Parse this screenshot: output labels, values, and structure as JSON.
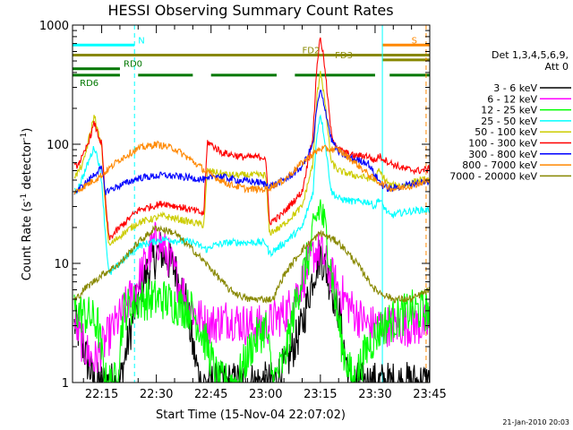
{
  "chart_data": {
    "type": "line",
    "title": "HESSI Observing Summary Count Rates",
    "xlabel": "Start Time (15-Nov-04 22:07:02)",
    "ylabel_main": "Count Rate (s",
    "ylabel_sup1": "-1",
    "ylabel_mid": " detector",
    "ylabel_sup2": "-1",
    "ylabel_end": ")",
    "yscale": "log",
    "xlim": [
      7,
      105
    ],
    "ylim": [
      1,
      1000
    ],
    "x_ticks": [
      {
        "value": 15,
        "label": "22:15"
      },
      {
        "value": 30,
        "label": "22:30"
      },
      {
        "value": 45,
        "label": "22:45"
      },
      {
        "value": 60,
        "label": "23:00"
      },
      {
        "value": 75,
        "label": "23:15"
      },
      {
        "value": 90,
        "label": "23:30"
      },
      {
        "value": 105,
        "label": "23:45"
      }
    ],
    "y_ticks": [
      {
        "value": 1,
        "label": "1"
      },
      {
        "value": 10,
        "label": "10"
      },
      {
        "value": 100,
        "label": "100"
      },
      {
        "value": 1000,
        "label": "1000"
      }
    ],
    "legend": {
      "placement": "right",
      "header_line1": "Det 1,3,4,5,6,9,",
      "header_line2": "Att 0",
      "entries": [
        {
          "label": "3 - 6 keV",
          "color": "#000000"
        },
        {
          "label": "6 - 12 keV",
          "color": "#ff00ff"
        },
        {
          "label": "12 - 25 keV",
          "color": "#00ff00"
        },
        {
          "label": "25 - 50 keV",
          "color": "#00ffff"
        },
        {
          "label": "50 - 100 keV",
          "color": "#cccc00"
        },
        {
          "label": "100 - 300 keV",
          "color": "#ff0000"
        },
        {
          "label": "300 - 800 keV",
          "color": "#0000ff"
        },
        {
          "label": "800 - 7000 keV",
          "color": "#ff8800"
        },
        {
          "label": "7000 - 20000 keV",
          "color": "#888800"
        }
      ]
    },
    "series": [
      {
        "band": "3 - 6 keV",
        "color": "#000000",
        "points": [
          [
            8,
            3
          ],
          [
            10,
            2
          ],
          [
            11,
            1.5
          ],
          [
            13,
            1
          ],
          [
            20,
            1
          ],
          [
            24,
            4
          ],
          [
            27,
            8
          ],
          [
            31,
            13
          ],
          [
            35,
            9
          ],
          [
            38,
            5
          ],
          [
            40,
            2
          ],
          [
            42,
            1
          ],
          [
            52,
            1
          ],
          [
            57,
            1
          ],
          [
            62,
            1
          ],
          [
            66,
            1.5
          ],
          [
            70,
            3
          ],
          [
            73,
            8
          ],
          [
            75,
            12
          ],
          [
            77,
            8
          ],
          [
            80,
            4
          ],
          [
            83,
            1
          ],
          [
            87,
            1
          ],
          [
            92,
            1
          ],
          [
            105,
            1
          ]
        ]
      },
      {
        "band": "6 - 12 keV",
        "color": "#ff00ff",
        "points": [
          [
            8,
            3
          ],
          [
            10,
            2
          ],
          [
            13,
            1.5
          ],
          [
            17,
            2.5
          ],
          [
            20,
            3.5
          ],
          [
            24,
            6
          ],
          [
            27,
            10
          ],
          [
            30,
            16
          ],
          [
            33,
            12
          ],
          [
            36,
            7
          ],
          [
            40,
            4
          ],
          [
            44,
            3
          ],
          [
            50,
            3.5
          ],
          [
            55,
            3
          ],
          [
            60,
            3
          ],
          [
            66,
            4
          ],
          [
            70,
            7
          ],
          [
            73,
            12
          ],
          [
            75,
            13
          ],
          [
            77,
            9
          ],
          [
            80,
            6
          ],
          [
            84,
            4
          ],
          [
            88,
            3
          ],
          [
            95,
            3
          ],
          [
            100,
            3
          ],
          [
            105,
            3
          ]
        ]
      },
      {
        "band": "12 - 25 keV",
        "color": "#00ff00",
        "points": [
          [
            8,
            4
          ],
          [
            12,
            3.5
          ],
          [
            14,
            3
          ],
          [
            16,
            1
          ],
          [
            19,
            1
          ],
          [
            21,
            4
          ],
          [
            26,
            5
          ],
          [
            32,
            5
          ],
          [
            40,
            4
          ],
          [
            44,
            2
          ],
          [
            47,
            1
          ],
          [
            52,
            1
          ],
          [
            56,
            2
          ],
          [
            60,
            3
          ],
          [
            62,
            1
          ],
          [
            65,
            1.5
          ],
          [
            69,
            6
          ],
          [
            72,
            12
          ],
          [
            74,
            25
          ],
          [
            75,
            30
          ],
          [
            77,
            15
          ],
          [
            79,
            5
          ],
          [
            81,
            2
          ],
          [
            84,
            1
          ],
          [
            88,
            2
          ],
          [
            92,
            3
          ],
          [
            100,
            4
          ],
          [
            105,
            4
          ]
        ]
      },
      {
        "band": "25 - 50 keV",
        "color": "#00ffff",
        "points": [
          [
            8,
            40
          ],
          [
            10,
            55
          ],
          [
            12,
            80
          ],
          [
            13,
            95
          ],
          [
            14,
            75
          ],
          [
            15,
            50
          ],
          [
            16,
            18
          ],
          [
            17,
            8
          ],
          [
            20,
            10
          ],
          [
            25,
            14
          ],
          [
            32,
            16
          ],
          [
            40,
            15
          ],
          [
            44,
            13
          ],
          [
            45,
            14
          ],
          [
            50,
            15
          ],
          [
            55,
            15
          ],
          [
            60,
            15
          ],
          [
            61,
            12
          ],
          [
            64,
            14
          ],
          [
            70,
            20
          ],
          [
            73,
            40
          ],
          [
            74,
            120
          ],
          [
            75,
            180
          ],
          [
            76,
            120
          ],
          [
            78,
            40
          ],
          [
            80,
            35
          ],
          [
            84,
            33
          ],
          [
            88,
            33
          ],
          [
            90,
            30
          ],
          [
            91,
            35
          ],
          [
            94,
            25
          ],
          [
            98,
            27
          ],
          [
            102,
            28
          ],
          [
            105,
            28
          ]
        ]
      },
      {
        "band": "50 - 100 keV",
        "color": "#cccc00",
        "points": [
          [
            8,
            55
          ],
          [
            10,
            70
          ],
          [
            12,
            130
          ],
          [
            13,
            175
          ],
          [
            14,
            125
          ],
          [
            15,
            95
          ],
          [
            16,
            30
          ],
          [
            17,
            14
          ],
          [
            20,
            17
          ],
          [
            25,
            22
          ],
          [
            32,
            25
          ],
          [
            40,
            22
          ],
          [
            43,
            21
          ],
          [
            44,
            60
          ],
          [
            50,
            55
          ],
          [
            55,
            55
          ],
          [
            60,
            55
          ],
          [
            61,
            18
          ],
          [
            64,
            20
          ],
          [
            70,
            30
          ],
          [
            73,
            70
          ],
          [
            74,
            240
          ],
          [
            75,
            420
          ],
          [
            76,
            260
          ],
          [
            78,
            70
          ],
          [
            80,
            60
          ],
          [
            84,
            55
          ],
          [
            88,
            52
          ],
          [
            90,
            50
          ],
          [
            91,
            60
          ],
          [
            94,
            45
          ],
          [
            98,
            45
          ],
          [
            102,
            50
          ],
          [
            105,
            50
          ]
        ]
      },
      {
        "band": "100 - 300 keV",
        "color": "#ff0000",
        "points": [
          [
            8,
            65
          ],
          [
            10,
            80
          ],
          [
            12,
            120
          ],
          [
            13,
            150
          ],
          [
            14,
            120
          ],
          [
            15,
            100
          ],
          [
            16,
            35
          ],
          [
            17,
            16
          ],
          [
            20,
            20
          ],
          [
            25,
            28
          ],
          [
            32,
            32
          ],
          [
            40,
            28
          ],
          [
            43,
            26
          ],
          [
            44,
            105
          ],
          [
            48,
            85
          ],
          [
            54,
            78
          ],
          [
            60,
            78
          ],
          [
            61,
            22
          ],
          [
            64,
            25
          ],
          [
            70,
            40
          ],
          [
            73,
            120
          ],
          [
            74,
            450
          ],
          [
            75,
            800
          ],
          [
            76,
            500
          ],
          [
            78,
            120
          ],
          [
            80,
            90
          ],
          [
            84,
            80
          ],
          [
            88,
            80
          ],
          [
            90,
            72
          ],
          [
            91,
            80
          ],
          [
            94,
            70
          ],
          [
            98,
            62
          ],
          [
            102,
            60
          ],
          [
            105,
            62
          ]
        ]
      },
      {
        "band": "300 - 800 keV",
        "color": "#0000ff",
        "points": [
          [
            8,
            40
          ],
          [
            10,
            45
          ],
          [
            12,
            52
          ],
          [
            14,
            60
          ],
          [
            15,
            62
          ],
          [
            16,
            40
          ],
          [
            20,
            45
          ],
          [
            25,
            52
          ],
          [
            32,
            55
          ],
          [
            40,
            52
          ],
          [
            44,
            50
          ],
          [
            46,
            55
          ],
          [
            52,
            50
          ],
          [
            58,
            48
          ],
          [
            60,
            46
          ],
          [
            62,
            45
          ],
          [
            66,
            52
          ],
          [
            70,
            65
          ],
          [
            73,
            100
          ],
          [
            74,
            200
          ],
          [
            75,
            280
          ],
          [
            76,
            220
          ],
          [
            78,
            110
          ],
          [
            80,
            85
          ],
          [
            84,
            75
          ],
          [
            88,
            70
          ],
          [
            90,
            55
          ],
          [
            92,
            45
          ],
          [
            94,
            42
          ],
          [
            98,
            45
          ],
          [
            102,
            48
          ],
          [
            105,
            48
          ]
        ]
      },
      {
        "band": "800 - 7000 keV",
        "color": "#ff8800",
        "points": [
          [
            8,
            40
          ],
          [
            15,
            55
          ],
          [
            20,
            75
          ],
          [
            25,
            92
          ],
          [
            30,
            100
          ],
          [
            35,
            92
          ],
          [
            40,
            72
          ],
          [
            45,
            55
          ],
          [
            50,
            46
          ],
          [
            55,
            42
          ],
          [
            60,
            42
          ],
          [
            65,
            50
          ],
          [
            70,
            70
          ],
          [
            75,
            92
          ],
          [
            80,
            90
          ],
          [
            85,
            68
          ],
          [
            90,
            50
          ],
          [
            95,
            42
          ],
          [
            100,
            45
          ],
          [
            105,
            50
          ]
        ]
      },
      {
        "band": "7000 - 20000 keV",
        "color": "#888800",
        "points": [
          [
            8,
            5
          ],
          [
            10,
            6
          ],
          [
            15,
            8
          ],
          [
            20,
            10
          ],
          [
            25,
            15
          ],
          [
            30,
            20
          ],
          [
            35,
            18
          ],
          [
            40,
            13
          ],
          [
            45,
            9
          ],
          [
            50,
            6
          ],
          [
            55,
            5
          ],
          [
            60,
            5
          ],
          [
            62,
            5
          ],
          [
            65,
            8
          ],
          [
            70,
            13
          ],
          [
            75,
            18
          ],
          [
            80,
            15
          ],
          [
            85,
            10
          ],
          [
            90,
            6
          ],
          [
            95,
            5
          ],
          [
            100,
            5
          ],
          [
            105,
            6
          ]
        ]
      }
    ],
    "flags": [
      {
        "label": "N",
        "color": "#00ffff",
        "x_start": 7,
        "x_end": 24,
        "level": 680,
        "label_x": 25
      },
      {
        "label": "S",
        "color": "#ff8800",
        "x_start": 92,
        "x_end": 105,
        "level": 680,
        "label_x": 100
      },
      {
        "label": "FD2",
        "color": "#888800",
        "x_start": 7,
        "x_end": 105,
        "level": 560,
        "label_x": 70
      },
      {
        "label": "FD3",
        "color": "#888800",
        "x_start": 92,
        "x_end": 105,
        "level": 510,
        "label_x": 79
      },
      {
        "label": "RD0",
        "color": "#007700",
        "x_start": 7,
        "x_end": 20,
        "level": 430,
        "label_x": 21
      }
    ],
    "rd6_label": "RD6",
    "rd_segments": [
      [
        7,
        20
      ],
      [
        25,
        40
      ],
      [
        45,
        63
      ],
      [
        68,
        90
      ],
      [
        94,
        105
      ]
    ]
  },
  "footer": {
    "date": "21-Jan-2010 20:03"
  }
}
